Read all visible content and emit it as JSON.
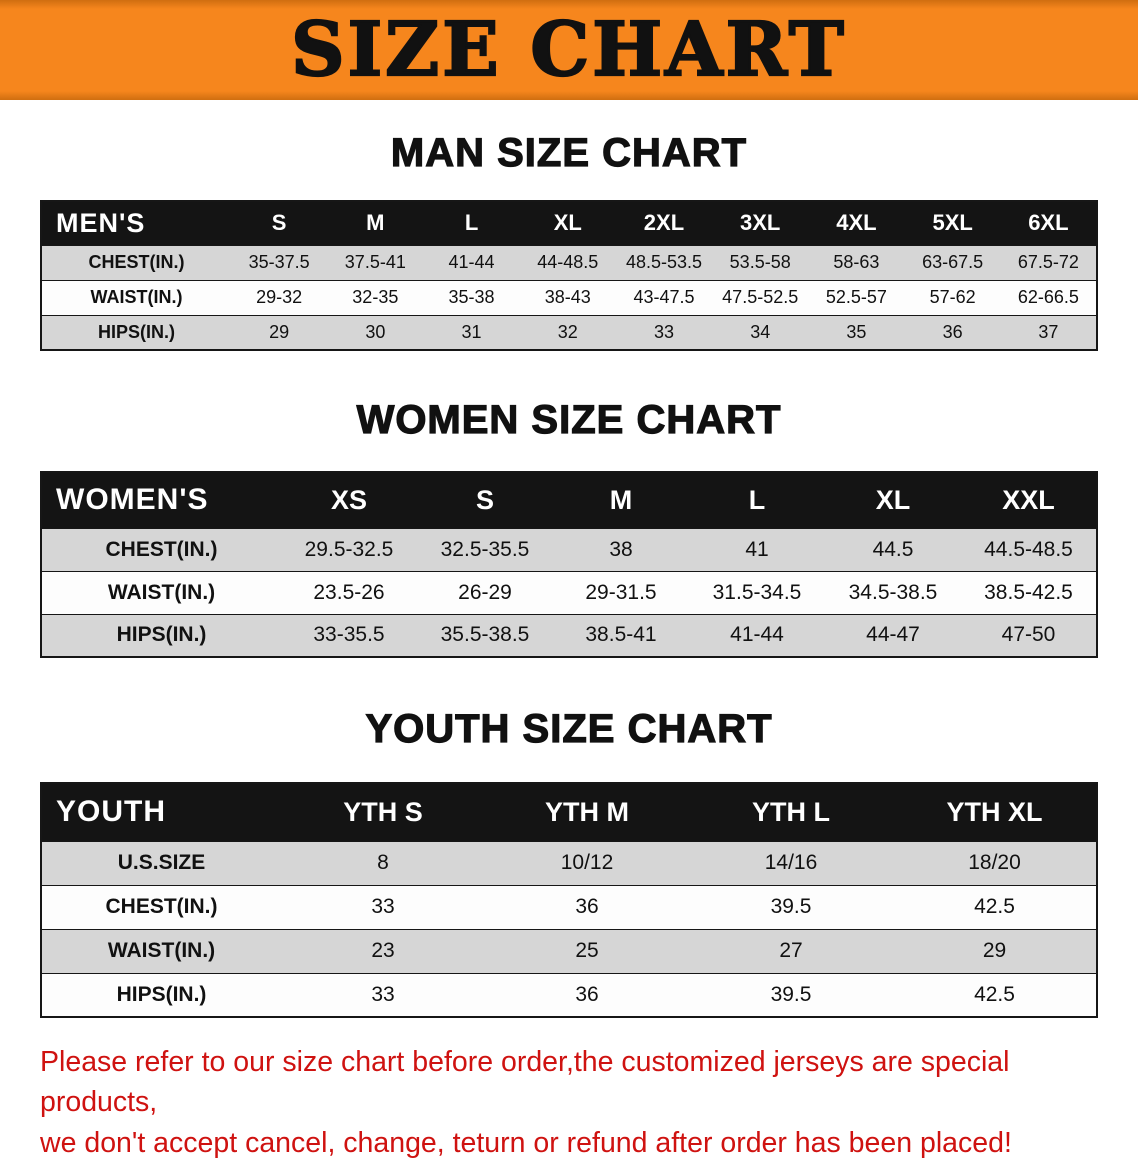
{
  "banner": {
    "title": "SIZE CHART"
  },
  "colors": {
    "banner_bg": "#f6861d",
    "banner_edge": "#d06e10",
    "header_bg": "#141414",
    "row_alt_bg": "#d6d6d6",
    "row_bg": "#fdfdfd",
    "table_border": "#161616",
    "heading_color": "#111111",
    "disclaimer_color": "#cf1210"
  },
  "sections": [
    {
      "id": "men",
      "heading": "MAN SIZE CHART",
      "corner_label": "MEN'S",
      "columns": [
        "S",
        "M",
        "L",
        "XL",
        "2XL",
        "3XL",
        "4XL",
        "5XL",
        "6XL"
      ],
      "rows": [
        {
          "label": "CHEST(IN.)",
          "values": [
            "35-37.5",
            "37.5-41",
            "41-44",
            "44-48.5",
            "48.5-53.5",
            "53.5-58",
            "58-63",
            "63-67.5",
            "67.5-72"
          ]
        },
        {
          "label": "WAIST(IN.)",
          "values": [
            "29-32",
            "32-35",
            "35-38",
            "38-43",
            "43-47.5",
            "47.5-52.5",
            "52.5-57",
            "57-62",
            "62-66.5"
          ]
        },
        {
          "label": "HIPS(IN.)",
          "values": [
            "29",
            "30",
            "31",
            "32",
            "33",
            "34",
            "35",
            "36",
            "37"
          ]
        }
      ]
    },
    {
      "id": "women",
      "heading": "WOMEN SIZE CHART",
      "corner_label": "WOMEN'S",
      "columns": [
        "XS",
        "S",
        "M",
        "L",
        "XL",
        "XXL"
      ],
      "rows": [
        {
          "label": "CHEST(IN.)",
          "values": [
            "29.5-32.5",
            "32.5-35.5",
            "38",
            "41",
            "44.5",
            "44.5-48.5"
          ]
        },
        {
          "label": "WAIST(IN.)",
          "values": [
            "23.5-26",
            "26-29",
            "29-31.5",
            "31.5-34.5",
            "34.5-38.5",
            "38.5-42.5"
          ]
        },
        {
          "label": "HIPS(IN.)",
          "values": [
            "33-35.5",
            "35.5-38.5",
            "38.5-41",
            "41-44",
            "44-47",
            "47-50"
          ]
        }
      ]
    },
    {
      "id": "youth",
      "heading": "YOUTH SIZE CHART",
      "corner_label": "YOUTH",
      "columns": [
        "YTH S",
        "YTH M",
        "YTH L",
        "YTH XL"
      ],
      "rows": [
        {
          "label": "U.S.SIZE",
          "values": [
            "8",
            "10/12",
            "14/16",
            "18/20"
          ]
        },
        {
          "label": "CHEST(IN.)",
          "values": [
            "33",
            "36",
            "39.5",
            "42.5"
          ]
        },
        {
          "label": "WAIST(IN.)",
          "values": [
            "23",
            "25",
            "27",
            "29"
          ]
        },
        {
          "label": "HIPS(IN.)",
          "values": [
            "33",
            "36",
            "39.5",
            "42.5"
          ]
        }
      ]
    }
  ],
  "disclaimer": {
    "lines": [
      "Please refer to our size chart before order,the customized jerseys are special products,",
      "we don't accept cancel, change, teturn or refund after order has been placed!"
    ]
  }
}
